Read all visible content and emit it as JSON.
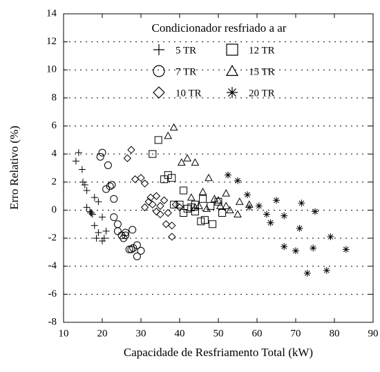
{
  "chart_data": {
    "type": "scatter",
    "legend_title": "Condicionador resfriado a ar",
    "xlabel": "Capacidade de Resfriamento Total (kW)",
    "ylabel": "Erro Relativo (%)",
    "xlim": [
      10,
      90
    ],
    "xticks": [
      10,
      20,
      30,
      40,
      50,
      60,
      70,
      80,
      90
    ],
    "ylim": [
      -8,
      14
    ],
    "yticks": [
      -8,
      -6,
      -4,
      -2,
      0,
      2,
      4,
      6,
      8,
      10,
      12,
      14
    ],
    "grid": "horizontal",
    "series": [
      {
        "name": "5 TR",
        "marker": "plus",
        "color": "#000000",
        "x": [
          13.2,
          13.9,
          14.8,
          15,
          15.5,
          16,
          16,
          16.8,
          17.2,
          17.5,
          18,
          18,
          19,
          19,
          18.5,
          20,
          20,
          21,
          20.5,
          17
        ],
        "values": [
          3.5,
          4.1,
          2.9,
          2.0,
          1.8,
          1.4,
          0.2,
          -0.1,
          -0.2,
          -0.3,
          0.9,
          -1.1,
          0.6,
          -1.6,
          -2.0,
          -0.5,
          -2.2,
          -1.5,
          -2.0,
          -0.2
        ]
      },
      {
        "name": "12 TR",
        "marker": "square",
        "color": "#000000",
        "x": [
          33,
          34.5,
          36,
          37,
          38,
          38.5,
          40,
          41,
          41,
          42,
          43,
          44,
          44,
          45.5,
          46,
          46.5,
          48,
          48.5,
          50,
          51
        ],
        "values": [
          4.0,
          5.0,
          2.2,
          2.5,
          2.3,
          0.4,
          0.4,
          1.4,
          -0.2,
          0.1,
          0.2,
          0.4,
          -0.1,
          -0.8,
          0.8,
          -0.7,
          0.3,
          -1.0,
          0.6,
          -0.2
        ]
      },
      {
        "name": "7 TR",
        "marker": "circle",
        "color": "#000000",
        "x": [
          20,
          19.5,
          21.5,
          21,
          22,
          22.5,
          23,
          23,
          24,
          24,
          25,
          25.5,
          26,
          26,
          27,
          27.5,
          27.8,
          29,
          29,
          30,
          28
        ],
        "values": [
          4.1,
          3.8,
          3.2,
          1.5,
          1.7,
          1.8,
          0.8,
          -0.5,
          -1.0,
          -1.5,
          -1.8,
          -2.0,
          -1.6,
          -1.8,
          -2.8,
          -2.8,
          -1.4,
          -3.3,
          -2.5,
          -2.9,
          -2.7
        ]
      },
      {
        "name": "15 TR",
        "marker": "triangle",
        "color": "#000000",
        "x": [
          37,
          38.5,
          40.5,
          42,
          44,
          43,
          44,
          45,
          46,
          47,
          47.5,
          49,
          50,
          50.5,
          52,
          52,
          53,
          55,
          55.5,
          58
        ],
        "values": [
          5.3,
          5.9,
          3.4,
          3.7,
          3.4,
          0.9,
          0.2,
          0.3,
          1.3,
          0.1,
          2.3,
          0.8,
          0.7,
          0.3,
          1.2,
          0.3,
          0.0,
          -0.3,
          0.6,
          0.4
        ]
      },
      {
        "name": "10 TR",
        "marker": "diamond",
        "color": "#000000",
        "x": [
          27.5,
          26.5,
          28.5,
          30,
          31,
          31,
          32,
          32.5,
          33,
          34,
          34,
          35,
          35,
          36,
          36.5,
          37,
          38,
          38,
          39,
          40
        ],
        "values": [
          4.3,
          3.7,
          2.2,
          2.3,
          1.9,
          0.2,
          0.6,
          0.9,
          0.4,
          1.0,
          -0.1,
          -0.3,
          0.3,
          0.7,
          -1.0,
          -0.2,
          -1.1,
          -1.9,
          0.4,
          0.2
        ]
      },
      {
        "name": "20 TR",
        "marker": "asterisk",
        "color": "#000000",
        "x": [
          52.5,
          55,
          57.5,
          58,
          60.5,
          62.5,
          63.5,
          65,
          67,
          67,
          70,
          71,
          71.5,
          73,
          74.5,
          75,
          78,
          79,
          83
        ],
        "values": [
          2.5,
          2.1,
          1.1,
          0.2,
          0.3,
          -0.3,
          -0.9,
          0.7,
          -0.4,
          -2.6,
          -2.9,
          -1.3,
          0.5,
          -4.5,
          -2.7,
          -0.1,
          -4.3,
          -1.9,
          -2.8
        ]
      }
    ]
  }
}
